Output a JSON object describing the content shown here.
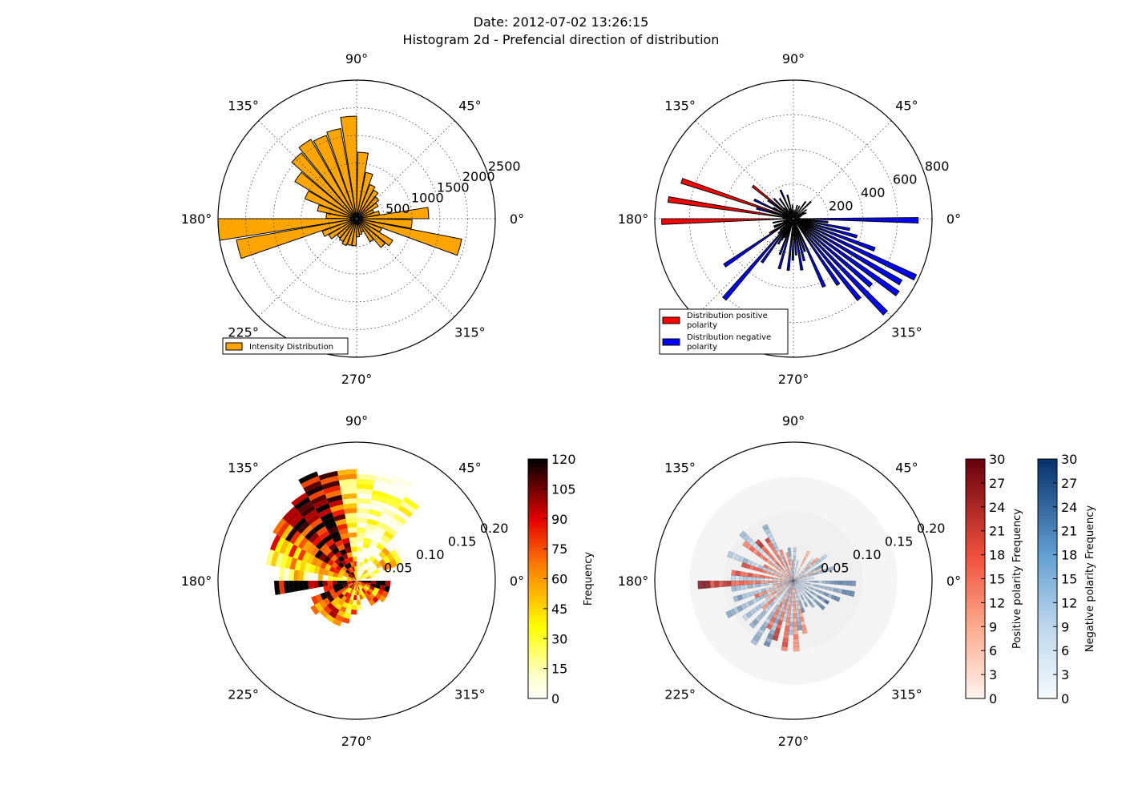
{
  "figure": {
    "title_line1": "Date: 2012-07-02 13:26:15",
    "title_line2": "Histogram 2d - Prefencial direction of distribution"
  },
  "angle_labels": [
    "0°",
    "45°",
    "90°",
    "135°",
    "180°",
    "225°",
    "270°",
    "315°"
  ],
  "chart_data": [
    {
      "type": "bar",
      "subtype": "polar-rose",
      "rmax": 2500,
      "rticks": [
        500,
        1000,
        1500,
        2000,
        2500
      ],
      "rtick_labels": [
        "500",
        "1000",
        "1500",
        "2000",
        "2500"
      ],
      "grid": true,
      "legend": {
        "placement": "lower-left",
        "entries": [
          {
            "label": "Intensity Distribution",
            "color": "#ffa500"
          }
        ]
      },
      "series": [
        {
          "name": "Intensity Distribution",
          "color": "#ffa500",
          "bar_width_deg": 9,
          "angles_deg": [
            0,
            10,
            20,
            30,
            40,
            50,
            60,
            70,
            80,
            90,
            100,
            110,
            120,
            130,
            140,
            150,
            160,
            170,
            180,
            190,
            200,
            210,
            220,
            230,
            240,
            250,
            260,
            270,
            280,
            290,
            300,
            310,
            320,
            330,
            340,
            350
          ],
          "values": [
            1300,
            420,
            330,
            450,
            520,
            600,
            660,
            850,
            1200,
            1850,
            1650,
            1600,
            1650,
            1550,
            1300,
            1000,
            720,
            550,
            2500,
            2200,
            660,
            580,
            460,
            480,
            520,
            490,
            490,
            330,
            290,
            260,
            480,
            680,
            760,
            480,
            1930,
            1000
          ]
        }
      ]
    },
    {
      "type": "bar",
      "subtype": "polar-rose",
      "rmax": 800,
      "rticks": [
        200,
        400,
        600,
        800
      ],
      "rtick_labels": [
        "200",
        "400",
        "600",
        "800"
      ],
      "grid": true,
      "legend": {
        "placement": "lower-left",
        "entries": [
          {
            "label_lines": [
              "Distribution positive",
              " polarity"
            ],
            "color": "#ff0000"
          },
          {
            "label_lines": [
              "Distribution negative",
              " polarity"
            ],
            "color": "#0000ff"
          }
        ]
      },
      "series": [
        {
          "name": "Distribution positive polarity",
          "color": "#ff0000",
          "bar_width_deg": 2.5,
          "angles_deg": [
            0,
            10,
            20,
            30,
            40,
            60,
            75,
            90,
            100,
            110,
            120,
            130,
            140,
            150,
            160,
            170,
            180,
            190,
            200,
            210,
            220,
            230,
            240,
            250,
            260,
            280,
            300
          ],
          "values": [
            40,
            30,
            30,
            40,
            40,
            40,
            20,
            30,
            50,
            60,
            50,
            80,
            300,
            130,
            680,
            730,
            760,
            120,
            120,
            160,
            100,
            70,
            140,
            30,
            40,
            40,
            30
          ]
        },
        {
          "name": "Distribution negative polarity",
          "color": "#0000ff",
          "bar_width_deg": 2.5,
          "angles_deg": [
            3,
            8,
            13,
            18,
            23,
            28,
            33,
            43,
            53,
            63,
            73,
            83,
            93,
            103,
            113,
            123,
            133,
            143,
            153,
            163,
            173,
            183,
            193,
            203,
            213,
            223,
            228,
            233,
            238,
            243,
            248,
            253,
            263,
            268,
            273,
            278,
            283,
            288,
            293,
            303,
            308,
            313,
            318,
            323,
            328,
            333,
            338,
            343,
            348,
            353,
            358
          ],
          "values": [
            30,
            30,
            40,
            50,
            80,
            70,
            90,
            140,
            120,
            80,
            80,
            50,
            80,
            140,
            180,
            140,
            160,
            180,
            250,
            220,
            60,
            40,
            60,
            120,
            480,
            120,
            610,
            310,
            170,
            120,
            220,
            300,
            300,
            240,
            210,
            300,
            250,
            200,
            430,
            460,
            600,
            760,
            590,
            740,
            720,
            780,
            500,
            380,
            330,
            200,
            720
          ]
        }
      ]
    },
    {
      "type": "heatmap",
      "subtype": "polar-histogram2d",
      "rmax": 0.2,
      "rticks": [
        0.05,
        0.1,
        0.15,
        0.2
      ],
      "rtick_labels": [
        "0.05",
        "0.10",
        "0.15",
        "0.20"
      ],
      "cmap": "hot_r",
      "colorbar": {
        "label": "Frequency",
        "min": 0,
        "max": 120,
        "ticks": [
          "0",
          "15",
          "30",
          "45",
          "60",
          "75",
          "90",
          "105",
          "120"
        ]
      },
      "angle_bin_deg": 10,
      "radial_bin": 0.007,
      "ray_lengths": [
        0.0,
        0.06,
        0.08,
        0.08,
        0.07,
        0.15,
        0.16,
        0.16,
        0.16,
        0.16,
        0.16,
        0.17,
        0.15,
        0.14,
        0.14,
        0.13,
        0.13,
        0.11,
        0.12,
        0.05,
        0.07,
        0.08,
        0.07,
        0.07,
        0.07,
        0.06,
        0.05,
        0.04,
        0.03,
        0.03,
        0.04,
        0.04,
        0.05,
        0.05,
        0.05,
        0.05
      ],
      "ray_intensity": [
        0.0,
        0.2,
        0.3,
        0.25,
        0.2,
        0.05,
        0.05,
        0.05,
        0.1,
        0.4,
        0.7,
        0.85,
        0.9,
        0.8,
        0.7,
        0.6,
        0.4,
        0.25,
        0.95,
        0.95,
        0.9,
        0.7,
        0.6,
        0.55,
        0.5,
        0.45,
        0.45,
        0.4,
        0.4,
        0.4,
        0.45,
        0.5,
        0.55,
        0.6,
        0.9,
        0.95
      ]
    },
    {
      "type": "heatmap",
      "subtype": "polar-histogram2d-overlay",
      "rmax": 0.2,
      "rticks": [
        0.05,
        0.1,
        0.15,
        0.2
      ],
      "rtick_labels": [
        "0.05",
        "0.10",
        "0.15",
        "0.20"
      ],
      "background_rmax": 0.15,
      "colorbars": [
        {
          "label": "Positive polarity Frequency",
          "cmap": "Reds",
          "min": 0,
          "max": 30,
          "ticks": [
            "0",
            "3",
            "6",
            "9",
            "12",
            "15",
            "18",
            "21",
            "24",
            "27",
            "30"
          ]
        },
        {
          "label": "Negative polarity Frequency",
          "cmap": "Blues",
          "min": 0,
          "max": 30,
          "ticks": [
            "0",
            "3",
            "6",
            "9",
            "12",
            "15",
            "18",
            "21",
            "24",
            "27",
            "30"
          ]
        }
      ],
      "positive": {
        "angles_deg": [
          20,
          40,
          60,
          90,
          100,
          110,
          120,
          130,
          140,
          150,
          160,
          170,
          180,
          190,
          200,
          210,
          220,
          240,
          250,
          260,
          270,
          280
        ],
        "lengths": [
          0.04,
          0.05,
          0.05,
          0.03,
          0.04,
          0.05,
          0.07,
          0.08,
          0.09,
          0.05,
          0.08,
          0.09,
          0.14,
          0.03,
          0.06,
          0.05,
          0.06,
          0.08,
          0.09,
          0.1,
          0.1,
          0.08
        ],
        "intensity": [
          0.3,
          0.4,
          0.3,
          0.4,
          0.5,
          0.6,
          0.7,
          0.8,
          0.6,
          0.5,
          0.6,
          0.7,
          0.85,
          0.4,
          0.5,
          0.4,
          0.5,
          0.6,
          0.7,
          0.6,
          0.5,
          0.4
        ]
      },
      "negative": {
        "angles_deg": [
          0,
          10,
          20,
          30,
          40,
          70,
          80,
          90,
          110,
          130,
          150,
          170,
          180,
          190,
          200,
          210,
          220,
          230,
          240,
          250,
          260,
          270,
          280,
          290,
          300,
          310,
          320,
          330,
          340,
          350
        ],
        "lengths": [
          0.03,
          0.06,
          0.05,
          0.06,
          0.04,
          0.03,
          0.05,
          0.05,
          0.09,
          0.1,
          0.1,
          0.09,
          0.09,
          0.09,
          0.11,
          0.09,
          0.09,
          0.11,
          0.1,
          0.06,
          0.08,
          0.07,
          0.05,
          0.04,
          0.05,
          0.06,
          0.06,
          0.07,
          0.09,
          0.09
        ],
        "intensity": [
          0.4,
          0.7,
          0.6,
          0.5,
          0.4,
          0.5,
          0.5,
          0.6,
          0.5,
          0.4,
          0.5,
          0.4,
          0.6,
          0.6,
          0.6,
          0.5,
          0.6,
          0.6,
          0.7,
          0.5,
          0.5,
          0.6,
          0.7,
          0.7,
          0.8,
          0.85,
          0.85,
          0.8,
          0.75,
          0.8
        ]
      }
    }
  ]
}
